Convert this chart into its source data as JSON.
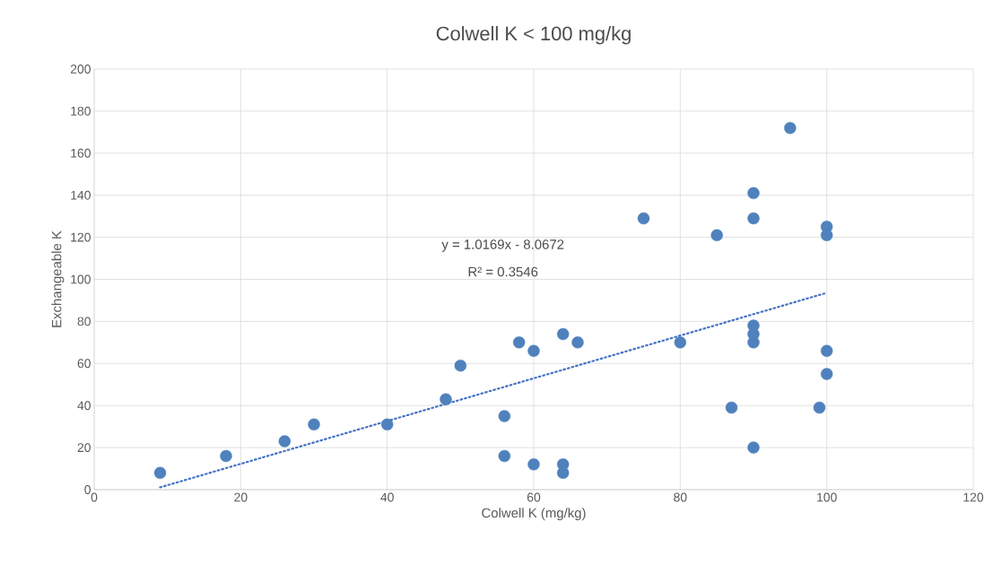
{
  "chart_data": {
    "type": "scatter",
    "title": "Colwell K < 100 mg/kg",
    "xlabel": "Colwell K (mg/kg)",
    "ylabel": "Exchangeable K",
    "xlim": [
      0,
      120
    ],
    "xticks": [
      0,
      20,
      40,
      60,
      80,
      100,
      120
    ],
    "ylim": [
      0,
      200
    ],
    "yticks": [
      0,
      20,
      40,
      60,
      80,
      100,
      120,
      140,
      160,
      180,
      200
    ],
    "grid": true,
    "annotations": [
      "y = 1.0169x - 8.0672",
      "R² = 0.3546"
    ],
    "series": [
      {
        "type": "scatter",
        "marker": "circle",
        "color": "#4f81bd",
        "x": [
          9,
          18,
          26,
          30,
          40,
          48,
          50,
          56,
          56,
          58,
          60,
          60,
          64,
          64,
          64,
          66,
          75,
          80,
          85,
          87,
          90,
          90,
          90,
          90,
          90,
          90,
          95,
          99,
          100,
          100,
          100,
          100
        ],
        "values": [
          8,
          16,
          23,
          31,
          31,
          43,
          59,
          35,
          16,
          70,
          66,
          12,
          74,
          12,
          8,
          70,
          129,
          70,
          121,
          39,
          141,
          129,
          78,
          74,
          70,
          20,
          172,
          39,
          125,
          121,
          66,
          55
        ]
      },
      {
        "type": "line",
        "color": "#4472c4",
        "line_style": "dotted",
        "marker": "none",
        "x": [
          9,
          100
        ],
        "values": [
          1.1,
          93.6
        ]
      }
    ]
  }
}
